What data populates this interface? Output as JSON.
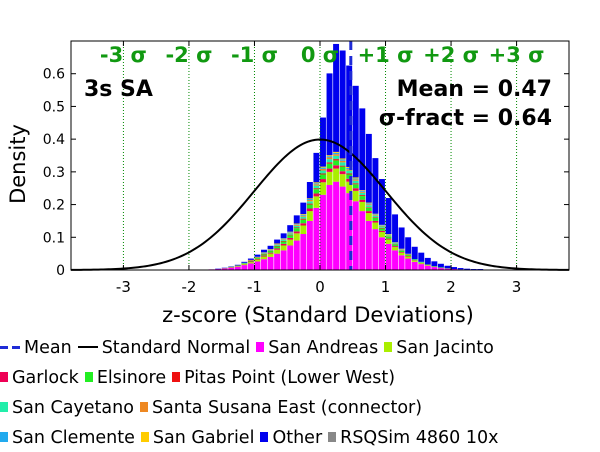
{
  "chart_data": {
    "type": "bar",
    "xlabel": "z-score (Standard Deviations)",
    "ylabel": "Density",
    "xlim": [
      -3.8,
      3.8
    ],
    "ylim": [
      0,
      0.7
    ],
    "x_ticks": [
      -3,
      -2,
      -1,
      0,
      1,
      2,
      3
    ],
    "y_ticks": [
      0,
      0.1,
      0.2,
      0.3,
      0.4,
      0.5,
      0.6
    ],
    "sigma_lines": [
      -3,
      -2,
      -1,
      0,
      1,
      2,
      3
    ],
    "sigma_labels": [
      "-3 σ",
      "-2 σ",
      "-1 σ",
      "0 σ",
      "+1 σ",
      "+2 σ",
      "+3 σ"
    ],
    "period_label": "3s SA",
    "mean_label": "Mean = 0.47",
    "sigma_fract_label": "σ-fract = 0.64",
    "mean": 0.47,
    "sigma_fract": 0.64,
    "bin_width": 0.1,
    "bin_centers": [
      -1.65,
      -1.55,
      -1.45,
      -1.35,
      -1.25,
      -1.15,
      -1.05,
      -0.95,
      -0.85,
      -0.75,
      -0.65,
      -0.55,
      -0.45,
      -0.35,
      -0.25,
      -0.15,
      -0.05,
      0.05,
      0.15,
      0.25,
      0.35,
      0.45,
      0.55,
      0.65,
      0.75,
      0.85,
      0.95,
      1.05,
      1.15,
      1.25,
      1.35,
      1.45,
      1.55,
      1.65,
      1.75,
      1.85,
      1.95,
      2.05,
      2.15,
      2.25,
      2.35,
      2.45,
      2.55,
      2.65,
      2.75,
      2.85,
      2.95
    ],
    "series": [
      {
        "name": "San Andreas",
        "color": "#ff00ff",
        "values": [
          0.002,
          0.003,
          0.005,
          0.007,
          0.01,
          0.015,
          0.02,
          0.026,
          0.033,
          0.04,
          0.05,
          0.06,
          0.075,
          0.09,
          0.11,
          0.15,
          0.19,
          0.23,
          0.26,
          0.27,
          0.255,
          0.235,
          0.21,
          0.18,
          0.15,
          0.125,
          0.1,
          0.08,
          0.06,
          0.045,
          0.035,
          0.025,
          0.018,
          0.013,
          0.009,
          0.006,
          0.004,
          0.003,
          0.002,
          0.001,
          0.001,
          0.001,
          0.0,
          0.0,
          0.0,
          0.0,
          0.0
        ]
      },
      {
        "name": "San Jacinto",
        "color": "#aaee00",
        "values": [
          0.0,
          0.0,
          0.001,
          0.001,
          0.002,
          0.003,
          0.004,
          0.006,
          0.008,
          0.01,
          0.012,
          0.015,
          0.018,
          0.022,
          0.026,
          0.03,
          0.035,
          0.038,
          0.04,
          0.04,
          0.038,
          0.035,
          0.032,
          0.028,
          0.024,
          0.02,
          0.016,
          0.013,
          0.01,
          0.008,
          0.006,
          0.004,
          0.003,
          0.002,
          0.0015,
          0.001,
          0.001,
          0.0,
          0.0,
          0.0,
          0.0,
          0.0,
          0.0,
          0.0,
          0.0,
          0.0,
          0.0
        ]
      },
      {
        "name": "Garlock",
        "color": "#ee0055",
        "values": [
          0.0,
          0.0,
          0.0,
          0.001,
          0.001,
          0.001,
          0.002,
          0.002,
          0.003,
          0.003,
          0.004,
          0.005,
          0.005,
          0.006,
          0.007,
          0.008,
          0.009,
          0.01,
          0.01,
          0.01,
          0.009,
          0.009,
          0.008,
          0.007,
          0.006,
          0.005,
          0.004,
          0.003,
          0.003,
          0.002,
          0.002,
          0.001,
          0.001,
          0.001,
          0.0,
          0.0,
          0.0,
          0.0,
          0.0,
          0.0,
          0.0,
          0.0,
          0.0,
          0.0,
          0.0,
          0.0,
          0.0
        ]
      },
      {
        "name": "Elsinore",
        "color": "#22ee22",
        "values": [
          0.0,
          0.0,
          0.0,
          0.001,
          0.001,
          0.002,
          0.002,
          0.003,
          0.004,
          0.005,
          0.006,
          0.007,
          0.008,
          0.01,
          0.011,
          0.012,
          0.013,
          0.014,
          0.015,
          0.015,
          0.014,
          0.013,
          0.012,
          0.011,
          0.01,
          0.009,
          0.007,
          0.006,
          0.005,
          0.004,
          0.003,
          0.002,
          0.002,
          0.001,
          0.001,
          0.001,
          0.0,
          0.0,
          0.0,
          0.0,
          0.0,
          0.0,
          0.0,
          0.0,
          0.0,
          0.0,
          0.0
        ]
      },
      {
        "name": "Pitas Point (Lower West)",
        "color": "#ee1111",
        "values": [
          0.0,
          0.0,
          0.0,
          0.0,
          0.0,
          0.0,
          0.001,
          0.001,
          0.001,
          0.001,
          0.002,
          0.002,
          0.002,
          0.002,
          0.003,
          0.003,
          0.003,
          0.003,
          0.004,
          0.004,
          0.003,
          0.003,
          0.003,
          0.003,
          0.002,
          0.002,
          0.002,
          0.001,
          0.001,
          0.001,
          0.001,
          0.0,
          0.0,
          0.0,
          0.0,
          0.0,
          0.0,
          0.0,
          0.0,
          0.0,
          0.0,
          0.0,
          0.0,
          0.0,
          0.0,
          0.0,
          0.0
        ]
      },
      {
        "name": "San Cayetano",
        "color": "#22eeaa",
        "values": [
          0.0,
          0.0,
          0.0,
          0.0,
          0.0,
          0.001,
          0.001,
          0.001,
          0.002,
          0.002,
          0.003,
          0.003,
          0.004,
          0.005,
          0.006,
          0.007,
          0.008,
          0.009,
          0.01,
          0.01,
          0.01,
          0.009,
          0.008,
          0.007,
          0.006,
          0.005,
          0.004,
          0.003,
          0.003,
          0.002,
          0.001,
          0.001,
          0.001,
          0.0,
          0.0,
          0.0,
          0.0,
          0.0,
          0.0,
          0.0,
          0.0,
          0.0,
          0.0,
          0.0,
          0.0,
          0.0,
          0.0
        ]
      },
      {
        "name": "Santa Susana East (connector)",
        "color": "#ee8822",
        "values": [
          0.0,
          0.0,
          0.0,
          0.0,
          0.0,
          0.0,
          0.001,
          0.001,
          0.001,
          0.001,
          0.002,
          0.002,
          0.002,
          0.003,
          0.003,
          0.004,
          0.004,
          0.005,
          0.005,
          0.005,
          0.005,
          0.004,
          0.004,
          0.003,
          0.003,
          0.002,
          0.002,
          0.002,
          0.001,
          0.001,
          0.001,
          0.0,
          0.0,
          0.0,
          0.0,
          0.0,
          0.0,
          0.0,
          0.0,
          0.0,
          0.0,
          0.0,
          0.0,
          0.0,
          0.0,
          0.0,
          0.0
        ]
      },
      {
        "name": "San Clemente",
        "color": "#22aaee",
        "values": [
          0.0,
          0.0,
          0.0,
          0.0,
          0.0,
          0.0,
          0.0,
          0.001,
          0.001,
          0.001,
          0.001,
          0.002,
          0.002,
          0.002,
          0.003,
          0.003,
          0.003,
          0.004,
          0.004,
          0.004,
          0.004,
          0.004,
          0.003,
          0.003,
          0.003,
          0.002,
          0.002,
          0.001,
          0.001,
          0.001,
          0.001,
          0.0,
          0.0,
          0.0,
          0.0,
          0.0,
          0.0,
          0.0,
          0.0,
          0.0,
          0.0,
          0.0,
          0.0,
          0.0,
          0.0,
          0.0,
          0.0
        ]
      },
      {
        "name": "San Gabriel",
        "color": "#ffcc00",
        "values": [
          0.0,
          0.0,
          0.0,
          0.0,
          0.0,
          0.0,
          0.0,
          0.0,
          0.001,
          0.001,
          0.001,
          0.001,
          0.001,
          0.002,
          0.002,
          0.002,
          0.003,
          0.003,
          0.003,
          0.003,
          0.003,
          0.003,
          0.003,
          0.002,
          0.002,
          0.002,
          0.001,
          0.001,
          0.001,
          0.001,
          0.0,
          0.0,
          0.0,
          0.0,
          0.0,
          0.0,
          0.0,
          0.0,
          0.0,
          0.0,
          0.0,
          0.0,
          0.0,
          0.0,
          0.0,
          0.0,
          0.0
        ]
      },
      {
        "name": "Other",
        "color": "#0000ee",
        "values": [
          0.0,
          0.001,
          0.001,
          0.001,
          0.002,
          0.003,
          0.004,
          0.006,
          0.008,
          0.01,
          0.012,
          0.015,
          0.02,
          0.025,
          0.035,
          0.05,
          0.09,
          0.15,
          0.25,
          0.33,
          0.33,
          0.31,
          0.28,
          0.25,
          0.21,
          0.17,
          0.14,
          0.11,
          0.085,
          0.065,
          0.05,
          0.038,
          0.028,
          0.02,
          0.015,
          0.011,
          0.008,
          0.006,
          0.004,
          0.003,
          0.002,
          0.002,
          0.001,
          0.001,
          0.001,
          0.0,
          0.0
        ]
      }
    ],
    "curve": {
      "name": "Standard Normal",
      "mu": 0,
      "sigma": 1
    }
  },
  "legend": {
    "rows": [
      [
        {
          "type": "dash",
          "color": "#1f2bd6",
          "label": "Mean"
        },
        {
          "type": "line",
          "color": "#000000",
          "label": "Standard Normal"
        },
        {
          "type": "box",
          "color": "#ff00ff",
          "label": "San Andreas"
        },
        {
          "type": "box",
          "color": "#aaee00",
          "label": "San Jacinto"
        }
      ],
      [
        {
          "type": "box",
          "color": "#ee0055",
          "label": "Garlock"
        },
        {
          "type": "box",
          "color": "#22ee22",
          "label": "Elsinore"
        },
        {
          "type": "box",
          "color": "#ee1111",
          "label": "Pitas Point (Lower West)"
        }
      ],
      [
        {
          "type": "box",
          "color": "#22eeaa",
          "label": "San Cayetano"
        },
        {
          "type": "box",
          "color": "#ee8822",
          "label": "Santa Susana East (connector)"
        }
      ],
      [
        {
          "type": "box",
          "color": "#22aaee",
          "label": "San Clemente"
        },
        {
          "type": "box",
          "color": "#ffcc00",
          "label": "San Gabriel"
        },
        {
          "type": "box",
          "color": "#0000ee",
          "label": "Other"
        },
        {
          "type": "box",
          "color": "#888888",
          "label": "RSQSim 4860 10x"
        }
      ]
    ]
  }
}
